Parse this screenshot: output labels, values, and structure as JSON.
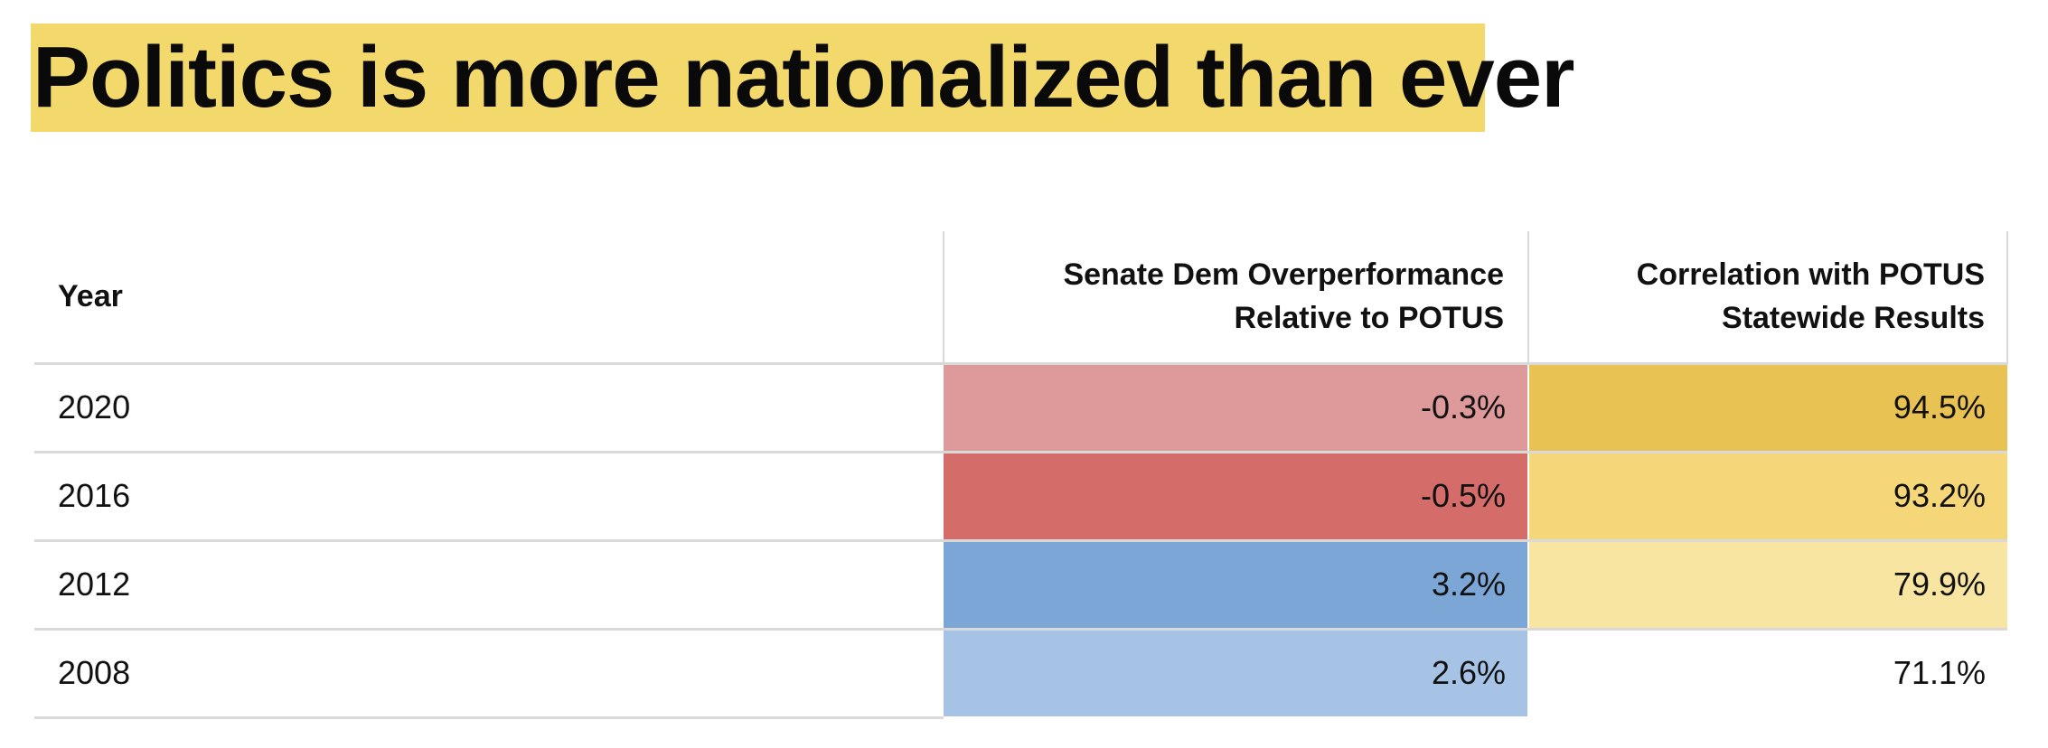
{
  "chart_data": {
    "type": "table",
    "title": "Politics is more nationalized than ever",
    "columns": [
      "Year",
      "Senate Dem Overperformance Relative to POTUS",
      "Correlation with POTUS Statewide Results"
    ],
    "header_lines": {
      "year": "Year",
      "senate_line1": "Senate Dem Overperformance",
      "senate_line2": "Relative to POTUS",
      "corr_line1": "Correlation with POTUS",
      "corr_line2": "Statewide Results"
    },
    "rows": [
      {
        "year": "2020",
        "senate": "-0.3%",
        "senate_value": -0.3,
        "corr": "94.5%",
        "corr_value": 94.5
      },
      {
        "year": "2016",
        "senate": "-0.5%",
        "senate_value": -0.5,
        "corr": "93.2%",
        "corr_value": 93.2
      },
      {
        "year": "2012",
        "senate": "3.2%",
        "senate_value": 3.2,
        "corr": "79.9%",
        "corr_value": 79.9
      },
      {
        "year": "2008",
        "senate": "2.6%",
        "senate_value": 2.6,
        "corr": "71.1%",
        "corr_value": 71.1
      }
    ],
    "cell_colors": {
      "senate": [
        "#de9a9a",
        "#d46c6a",
        "#7ca6d6",
        "#a6c3e6"
      ],
      "corr": [
        "#e8c252",
        "#f5d77a",
        "#f8e5a2",
        "#ffffff"
      ]
    },
    "title_highlight_color": "#f3d96c"
  }
}
